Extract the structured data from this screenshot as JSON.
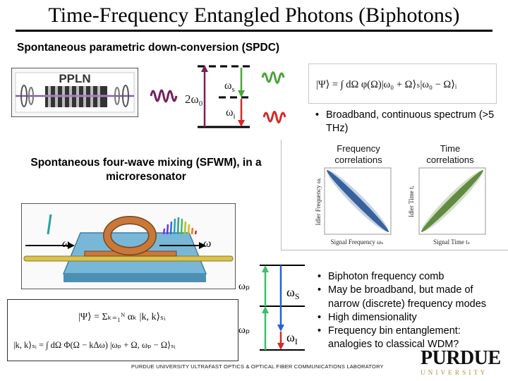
{
  "title": "Time-Frequency Entangled Photons (Biphotons)",
  "spdc": {
    "heading": "Spontaneous parametric down-conversion (SPDC)",
    "crystal_label": "PPLN",
    "pump_label": "2ω",
    "pump_sub": "0",
    "signal_label": "ω",
    "signal_sub": "s",
    "idler_label": "ω",
    "idler_sub": "i",
    "state_equation": "|Ψ⟩ = ∫ dΩ φ(Ω)|ω₀ + Ω⟩ₛ|ω₀ − Ω⟩ᵢ",
    "bullets": [
      "Broadband, continuous spectrum (>5 THz)"
    ]
  },
  "correlations": {
    "frequency_label": "Frequency correlations",
    "time_label": "Time correlations",
    "freq_xaxis": "Signal Frequency ωₛ",
    "freq_yaxis": "Idler Frequency ωᵢ",
    "time_xaxis": "Signal Time tₛ",
    "time_yaxis": "Idler Time tᵢ"
  },
  "sfwm": {
    "heading": "Spontaneous four-wave mixing (SFWM), in a microresonator",
    "omega_in": "ω",
    "omega_out": "ω",
    "pump_label": "ωₚ",
    "signal_label": "ω",
    "signal_sub": "S",
    "idler_label": "ω",
    "idler_sub": "I",
    "state_equation": "|Ψ⟩ = Σₖ₌₁ᴺ αₖ |k, k⟩ₛᵢ",
    "sum_upper": "N",
    "sum_lower": "k=1",
    "pair_equation": "|k, k⟩ₛᵢ = ∫ dΩ Φ(Ω − kΔω) |ωₚ + Ω, ωₚ − Ω⟩ₛᵢ",
    "bullets": [
      "Biphoton frequency comb",
      "May be broadband, but made of narrow (discrete) frequency modes",
      "High dimensionality",
      "Frequency bin entanglement: analogies to classical WDM?"
    ]
  },
  "footer": "PURDUE UNIVERSITY ULTRAFAST OPTICS & OPTICAL FIBER COMMUNICATIONS LABORATORY",
  "logo": {
    "name": "PURDUE",
    "sub": "U N I V E R S I T Y"
  },
  "colors": {
    "pump": "#7a1f5c",
    "signal": "#4aa53a",
    "idler": "#d42a2a",
    "freq_plot": "#1f4f8f",
    "time_plot": "#4e7d2a",
    "ring": "#c9783b",
    "chip": "#78b7d8",
    "logo_gold": "#b08d3c"
  }
}
